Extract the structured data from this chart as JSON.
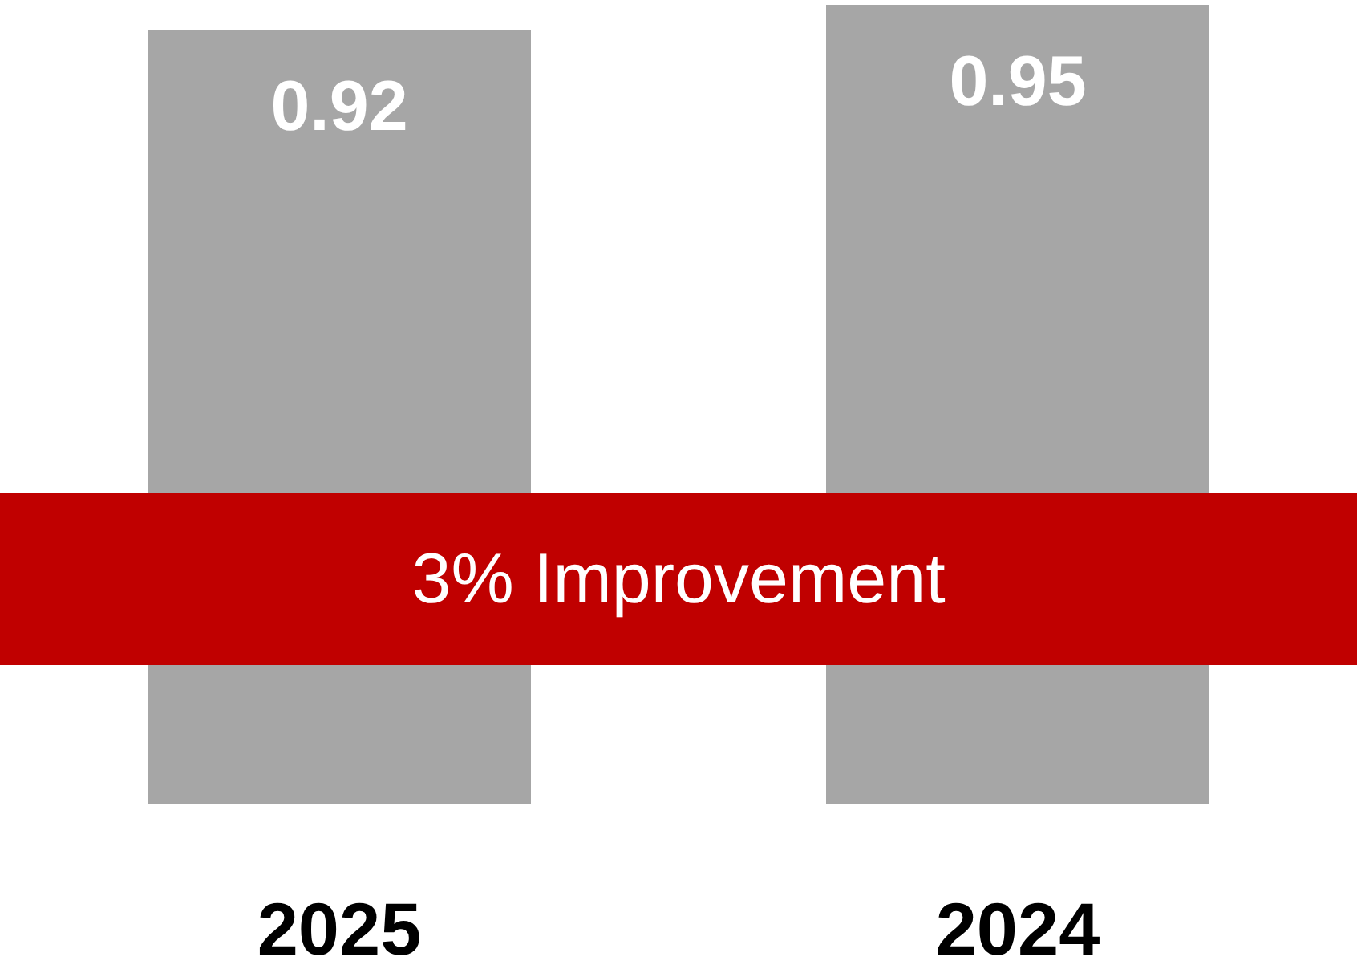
{
  "chart_data": {
    "type": "bar",
    "categories": [
      "2025",
      "2024"
    ],
    "values": [
      0.92,
      0.95
    ],
    "color": "#a6a6a6",
    "data_labels": true,
    "bands": [
      {
        "axis": "y",
        "from": 0.165,
        "to": 0.37,
        "label": "3% Improvement",
        "color": "#c00000"
      }
    ]
  }
}
